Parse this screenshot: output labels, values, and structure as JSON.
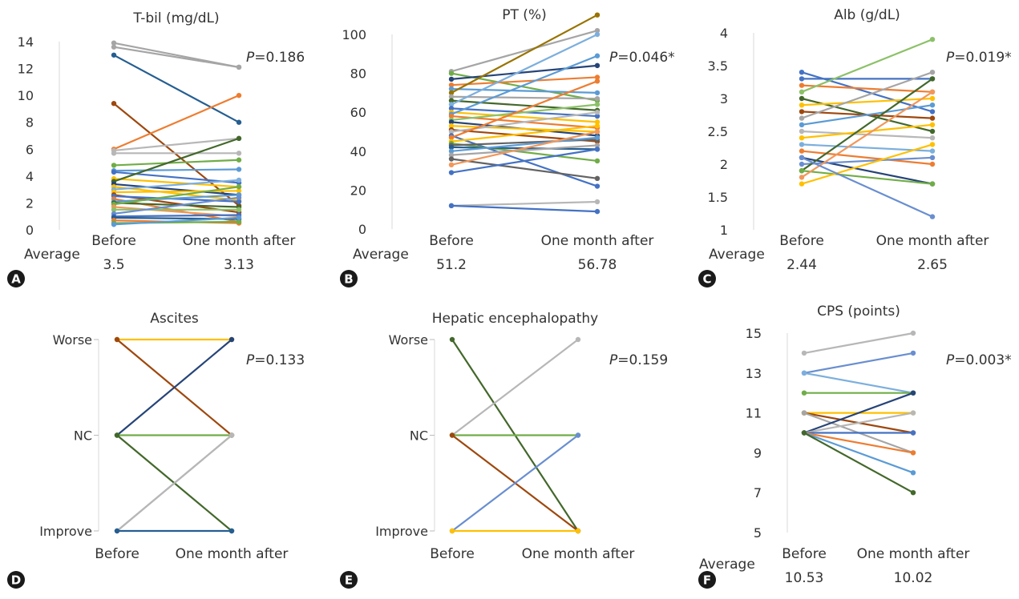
{
  "palette": [
    "#4472c4",
    "#ed7d31",
    "#a5a5a5",
    "#ffc000",
    "#5b9bd5",
    "#70ad47",
    "#264478",
    "#9e480e",
    "#636363",
    "#997300",
    "#255e91",
    "#43682b",
    "#698ed0",
    "#f1975a",
    "#b7b7b7",
    "#ffcd33",
    "#7cafdd",
    "#8cc168"
  ],
  "average_label": "Average",
  "chart_data": [
    {
      "type": "line",
      "panel": "A",
      "title": "T-bil (mg/dL)",
      "categories": [
        "Before",
        "One month after"
      ],
      "ylim": [
        0,
        14
      ],
      "yticks": [
        0,
        2,
        4,
        6,
        8,
        10,
        12,
        14
      ],
      "p_prefix": "P",
      "p_value": "=0.186",
      "averages": [
        "3.5",
        "3.13"
      ],
      "series": [
        {
          "values": [
            13.9,
            12.1
          ],
          "color": "#a5a5a5"
        },
        {
          "values": [
            13.6,
            12.1
          ],
          "color": "#a5a5a5"
        },
        {
          "values": [
            13.0,
            8.0
          ],
          "color": "#255e91"
        },
        {
          "values": [
            9.4,
            1.8
          ],
          "color": "#9e480e"
        },
        {
          "values": [
            6.0,
            10.0
          ],
          "color": "#ed7d31"
        },
        {
          "values": [
            5.9,
            6.8
          ],
          "color": "#b7b7b7"
        },
        {
          "values": [
            5.7,
            5.7
          ],
          "color": "#b7b7b7"
        },
        {
          "values": [
            4.8,
            5.2
          ],
          "color": "#70ad47"
        },
        {
          "values": [
            4.4,
            4.5
          ],
          "color": "#5b9bd5"
        },
        {
          "values": [
            4.3,
            3.5
          ],
          "color": "#4472c4"
        },
        {
          "values": [
            3.8,
            3.2
          ],
          "color": "#ffc000"
        },
        {
          "values": [
            3.6,
            6.8
          ],
          "color": "#43682b"
        },
        {
          "values": [
            3.4,
            2.6
          ],
          "color": "#264478"
        },
        {
          "values": [
            3.2,
            2.2
          ],
          "color": "#ffc000"
        },
        {
          "values": [
            3.0,
            3.7
          ],
          "color": "#7cafdd"
        },
        {
          "values": [
            2.8,
            2.9
          ],
          "color": "#ffc000"
        },
        {
          "values": [
            2.6,
            1.3
          ],
          "color": "#9e480e"
        },
        {
          "values": [
            2.5,
            2.1
          ],
          "color": "#4472c4"
        },
        {
          "values": [
            2.3,
            0.6
          ],
          "color": "#ed7d31"
        },
        {
          "values": [
            2.1,
            2.6
          ],
          "color": "#5b9bd5"
        },
        {
          "values": [
            2.0,
            1.7
          ],
          "color": "#43682b"
        },
        {
          "values": [
            1.9,
            3.2
          ],
          "color": "#70ad47"
        },
        {
          "values": [
            1.7,
            1.0
          ],
          "color": "#f1975a"
        },
        {
          "values": [
            1.5,
            1.5
          ],
          "color": "#8cc168"
        },
        {
          "values": [
            1.2,
            2.4
          ],
          "color": "#698ed0"
        },
        {
          "values": [
            1.0,
            1.1
          ],
          "color": "#4472c4"
        },
        {
          "values": [
            0.9,
            0.8
          ],
          "color": "#255e91"
        },
        {
          "values": [
            0.7,
            0.5
          ],
          "color": "#ed7d31"
        },
        {
          "values": [
            0.5,
            0.6
          ],
          "color": "#70ad47"
        },
        {
          "values": [
            0.4,
            0.9
          ],
          "color": "#5b9bd5"
        }
      ]
    },
    {
      "type": "line",
      "panel": "B",
      "title": "PT (%)",
      "categories": [
        "Before",
        "One month after"
      ],
      "ylim": [
        0,
        100
      ],
      "yticks": [
        0,
        20,
        40,
        60,
        80,
        100
      ],
      "p_prefix": "P",
      "p_value": "=0.046*",
      "averages": [
        "51.2",
        "56.78"
      ],
      "series": [
        {
          "values": [
            81,
            102
          ],
          "color": "#a5a5a5"
        },
        {
          "values": [
            80,
            66
          ],
          "color": "#70ad47"
        },
        {
          "values": [
            77,
            84
          ],
          "color": "#264478"
        },
        {
          "values": [
            74,
            78
          ],
          "color": "#ed7d31"
        },
        {
          "values": [
            72,
            70
          ],
          "color": "#5b9bd5"
        },
        {
          "values": [
            70,
            110
          ],
          "color": "#997300"
        },
        {
          "values": [
            68,
            67
          ],
          "color": "#a5a5a5"
        },
        {
          "values": [
            66,
            61
          ],
          "color": "#43682b"
        },
        {
          "values": [
            64,
            100
          ],
          "color": "#7cafdd"
        },
        {
          "values": [
            62,
            58
          ],
          "color": "#4472c4"
        },
        {
          "values": [
            60,
            55
          ],
          "color": "#ffc000"
        },
        {
          "values": [
            59,
            89
          ],
          "color": "#5b9bd5"
        },
        {
          "values": [
            58,
            52
          ],
          "color": "#ed7d31"
        },
        {
          "values": [
            56,
            64
          ],
          "color": "#8cc168"
        },
        {
          "values": [
            55,
            48
          ],
          "color": "#264478"
        },
        {
          "values": [
            53,
            50
          ],
          "color": "#ffc000"
        },
        {
          "values": [
            51,
            45
          ],
          "color": "#9e480e"
        },
        {
          "values": [
            50,
            60
          ],
          "color": "#b7b7b7"
        },
        {
          "values": [
            48,
            22
          ],
          "color": "#4472c4"
        },
        {
          "values": [
            47,
            76
          ],
          "color": "#ed7d31"
        },
        {
          "values": [
            45,
            53
          ],
          "color": "#ffc000"
        },
        {
          "values": [
            44,
            35
          ],
          "color": "#70ad47"
        },
        {
          "values": [
            43,
            46
          ],
          "color": "#636363"
        },
        {
          "values": [
            42,
            41
          ],
          "color": "#255e91"
        },
        {
          "values": [
            40,
            47
          ],
          "color": "#5b9bd5"
        },
        {
          "values": [
            38,
            43
          ],
          "color": "#a5a5a5"
        },
        {
          "values": [
            36,
            26
          ],
          "color": "#636363"
        },
        {
          "values": [
            33,
            50
          ],
          "color": "#f1975a"
        },
        {
          "values": [
            29,
            41
          ],
          "color": "#4472c4"
        },
        {
          "values": [
            12,
            14
          ],
          "color": "#b7b7b7"
        },
        {
          "values": [
            12,
            9
          ],
          "color": "#4472c4"
        }
      ]
    },
    {
      "type": "line",
      "panel": "C",
      "title": "Alb (g/dL)",
      "categories": [
        "Before",
        "One month after"
      ],
      "ylim": [
        1,
        4
      ],
      "yticks": [
        1,
        1.5,
        2,
        2.5,
        3,
        3.5,
        4
      ],
      "p_prefix": "P",
      "p_value": "=0.019*",
      "averages": [
        "2.44",
        "2.65"
      ],
      "series": [
        {
          "values": [
            3.4,
            2.8
          ],
          "color": "#4472c4"
        },
        {
          "values": [
            3.3,
            3.3
          ],
          "color": "#4472c4"
        },
        {
          "values": [
            3.2,
            3.1
          ],
          "color": "#ed7d31"
        },
        {
          "values": [
            3.1,
            3.9
          ],
          "color": "#8cc168"
        },
        {
          "values": [
            3.0,
            2.5
          ],
          "color": "#43682b"
        },
        {
          "values": [
            2.9,
            3.0
          ],
          "color": "#ffc000"
        },
        {
          "values": [
            2.8,
            2.7
          ],
          "color": "#9e480e"
        },
        {
          "values": [
            2.7,
            3.4
          ],
          "color": "#a5a5a5"
        },
        {
          "values": [
            2.6,
            2.9
          ],
          "color": "#5b9bd5"
        },
        {
          "values": [
            2.5,
            2.4
          ],
          "color": "#b7b7b7"
        },
        {
          "values": [
            2.4,
            2.6
          ],
          "color": "#ffc000"
        },
        {
          "values": [
            2.3,
            2.2
          ],
          "color": "#7cafdd"
        },
        {
          "values": [
            2.2,
            2.0
          ],
          "color": "#ed7d31"
        },
        {
          "values": [
            2.1,
            1.7
          ],
          "color": "#264478"
        },
        {
          "values": [
            2.0,
            2.1
          ],
          "color": "#698ed0"
        },
        {
          "values": [
            1.9,
            3.3
          ],
          "color": "#43682b"
        },
        {
          "values": [
            1.9,
            1.7
          ],
          "color": "#70ad47"
        },
        {
          "values": [
            1.8,
            3.1
          ],
          "color": "#f1975a"
        },
        {
          "values": [
            1.7,
            2.3
          ],
          "color": "#ffc000"
        },
        {
          "values": [
            2.1,
            1.2
          ],
          "color": "#698ed0"
        }
      ]
    },
    {
      "type": "line",
      "panel": "D",
      "title": "Ascites",
      "categories": [
        "Before",
        "One month after"
      ],
      "ylim": [
        0,
        2
      ],
      "yticks_labels": [
        "Improve",
        "NC",
        "Worse"
      ],
      "p_prefix": "P",
      "p_value": "=0.133",
      "series": [
        {
          "values": [
            2,
            2
          ],
          "color": "#ffc000"
        },
        {
          "values": [
            2,
            1
          ],
          "color": "#9e480e"
        },
        {
          "values": [
            1,
            2
          ],
          "color": "#264478"
        },
        {
          "values": [
            1,
            1
          ],
          "color": "#70ad47"
        },
        {
          "values": [
            1,
            0
          ],
          "color": "#43682b"
        },
        {
          "values": [
            0,
            1
          ],
          "color": "#a5a5a5"
        },
        {
          "values": [
            0,
            1
          ],
          "color": "#b7b7b7"
        },
        {
          "values": [
            0,
            0
          ],
          "color": "#255e91"
        }
      ]
    },
    {
      "type": "line",
      "panel": "E",
      "title": "Hepatic encephalopathy",
      "categories": [
        "Before",
        "One month after"
      ],
      "ylim": [
        0,
        2
      ],
      "yticks_labels": [
        "Improve",
        "NC",
        "Worse"
      ],
      "p_prefix": "P",
      "p_value": "=0.159",
      "series": [
        {
          "values": [
            2,
            0
          ],
          "color": "#43682b"
        },
        {
          "values": [
            1,
            2
          ],
          "color": "#b7b7b7"
        },
        {
          "values": [
            1,
            1
          ],
          "color": "#70ad47"
        },
        {
          "values": [
            1,
            0
          ],
          "color": "#9e480e"
        },
        {
          "values": [
            0,
            1
          ],
          "color": "#698ed0"
        },
        {
          "values": [
            0,
            0
          ],
          "color": "#ffc000"
        }
      ]
    },
    {
      "type": "line",
      "panel": "F",
      "title": "CPS (points)",
      "categories": [
        "Before",
        "One month after"
      ],
      "ylim": [
        5,
        15
      ],
      "yticks": [
        5,
        7,
        9,
        11,
        13,
        15
      ],
      "p_prefix": "P",
      "p_value": "=0.003*",
      "averages": [
        "10.53",
        "10.02"
      ],
      "series": [
        {
          "values": [
            14,
            15
          ],
          "color": "#b7b7b7"
        },
        {
          "values": [
            13,
            14
          ],
          "color": "#698ed0"
        },
        {
          "values": [
            13,
            12
          ],
          "color": "#7cafdd"
        },
        {
          "values": [
            12,
            12
          ],
          "color": "#70ad47"
        },
        {
          "values": [
            11,
            11
          ],
          "color": "#ffc000"
        },
        {
          "values": [
            11,
            10
          ],
          "color": "#9e480e"
        },
        {
          "values": [
            11,
            9
          ],
          "color": "#a5a5a5"
        },
        {
          "values": [
            10,
            12
          ],
          "color": "#264478"
        },
        {
          "values": [
            10,
            11
          ],
          "color": "#b7b7b7"
        },
        {
          "values": [
            10,
            10
          ],
          "color": "#4472c4"
        },
        {
          "values": [
            10,
            9
          ],
          "color": "#ed7d31"
        },
        {
          "values": [
            10,
            8
          ],
          "color": "#5b9bd5"
        },
        {
          "values": [
            10,
            7
          ],
          "color": "#43682b"
        }
      ]
    }
  ]
}
